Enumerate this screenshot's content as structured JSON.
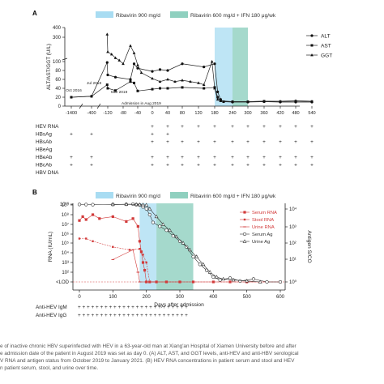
{
  "chart_data": [
    {
      "panel": "A",
      "type": "line",
      "ylabel": "ALT/AST/GGT (U/L)",
      "yticks": [
        "0",
        "20",
        "40",
        "60",
        "80",
        "100",
        "300",
        "400"
      ],
      "xticks": [
        "-1400",
        "-400",
        "-120",
        "-80",
        "-40",
        "0",
        "40",
        "80",
        "120",
        "180",
        "240",
        "300",
        "360",
        "420",
        "480",
        "540"
      ],
      "shaded": [
        {
          "label": "Ribavirin 900 mg/d",
          "color": "#a8dcf2"
        },
        {
          "label": "Ribavirin 600 mg/d + IFN 180 μg/wk",
          "color": "#8fd0bf"
        }
      ],
      "legend": [
        "ALT",
        "AST",
        "GGT"
      ],
      "annotations": [
        "Oct 2016",
        "Jul 2018",
        "Mar 2019",
        "Admission in Aug 2019"
      ],
      "series": [
        {
          "name": "ALT",
          "values": [
            [
              -1400,
              20
            ],
            [
              -400,
              22
            ],
            [
              -130,
              98
            ],
            [
              -120,
              70
            ],
            [
              -100,
              65
            ],
            [
              -60,
              60
            ],
            [
              -50,
              95
            ],
            [
              -40,
              85
            ],
            [
              0,
              78
            ],
            [
              20,
              82
            ],
            [
              40,
              80
            ],
            [
              80,
              95
            ],
            [
              140,
              88
            ],
            [
              180,
              95
            ],
            [
              190,
              32
            ],
            [
              200,
              15
            ],
            [
              210,
              10
            ],
            [
              240,
              9
            ],
            [
              300,
              9
            ],
            [
              360,
              10
            ],
            [
              420,
              9
            ],
            [
              480,
              9
            ],
            [
              540,
              9
            ]
          ]
        },
        {
          "name": "AST",
          "values": [
            [
              -1400,
              20
            ],
            [
              -400,
              22
            ],
            [
              -130,
              48
            ],
            [
              -120,
              40
            ],
            [
              -100,
              35
            ],
            [
              -60,
              55
            ],
            [
              -50,
              52
            ],
            [
              -40,
              34
            ],
            [
              0,
              38
            ],
            [
              20,
              40
            ],
            [
              40,
              40
            ],
            [
              80,
              42
            ],
            [
              140,
              40
            ],
            [
              180,
              42
            ],
            [
              190,
              20
            ],
            [
              200,
              12
            ],
            [
              210,
              10
            ],
            [
              240,
              10
            ],
            [
              300,
              10
            ],
            [
              360,
              11
            ],
            [
              420,
              10
            ],
            [
              480,
              11
            ],
            [
              540,
              10
            ]
          ]
        },
        {
          "name": "GGT",
          "values": [
            [
              -130,
              330
            ],
            [
              -120,
              180
            ],
            [
              -110,
              160
            ],
            [
              -100,
              130
            ],
            [
              -90,
              110
            ],
            [
              -80,
              95
            ],
            [
              -60,
              230
            ],
            [
              -50,
              170
            ],
            [
              -40,
              92
            ],
            [
              -30,
              75
            ],
            [
              0,
              62
            ],
            [
              20,
              55
            ],
            [
              40,
              60
            ],
            [
              60,
              55
            ],
            [
              80,
              58
            ],
            [
              100,
              55
            ],
            [
              120,
              52
            ],
            [
              140,
              48
            ],
            [
              170,
              100
            ],
            [
              180,
              40
            ],
            [
              190,
              15
            ],
            [
              200,
              12
            ],
            [
              240,
              10
            ],
            [
              300,
              10
            ],
            [
              360,
              11
            ],
            [
              420,
              11
            ],
            [
              480,
              12
            ],
            [
              540,
              11
            ]
          ]
        }
      ],
      "table": {
        "rows": [
          {
            "label": "HEV RNA",
            "cells": [
              "",
              "",
              "",
              "",
              "",
              "+",
              "+",
              "+",
              "+",
              "+",
              "+",
              "+",
              "+",
              "+",
              "+",
              "+"
            ]
          },
          {
            "label": "HBsAg",
            "cells": [
              "+",
              "+",
              "",
              "",
              "",
              "+",
              "+",
              "",
              "",
              "",
              "",
              "",
              "",
              "",
              "",
              ""
            ]
          },
          {
            "label": "HBsAb",
            "cells": [
              "",
              "",
              "",
              "",
              "",
              "+",
              "+",
              "+",
              "+",
              "+",
              "+",
              "+",
              "+",
              "+",
              "+",
              "+"
            ]
          },
          {
            "label": "HBeAg",
            "cells": [
              "",
              "",
              "",
              "",
              "",
              "",
              "",
              "",
              "",
              "",
              "",
              "",
              "",
              "",
              "",
              ""
            ]
          },
          {
            "label": "HBeAb",
            "cells": [
              "+",
              "+",
              "",
              "",
              "",
              "+",
              "+",
              "+",
              "+",
              "+",
              "+",
              "+",
              "+",
              "+",
              "+",
              "+"
            ]
          },
          {
            "label": "HBcAb",
            "cells": [
              "+",
              "+",
              "",
              "",
              "",
              "+",
              "+",
              "+",
              "+",
              "+",
              "+",
              "+",
              "+",
              "+",
              "+",
              "+"
            ]
          },
          {
            "label": "HBV DNA",
            "cells": [
              "",
              "",
              "",
              "",
              "",
              "",
              "",
              "",
              "",
              "",
              "",
              "",
              "",
              "",
              "",
              ""
            ]
          }
        ]
      }
    },
    {
      "panel": "B",
      "type": "line",
      "xlabel": "Days after admission",
      "ylabel": "RNA (IU/mL)",
      "ylabel2": "Antigen S/CO",
      "yticks": [
        "<LOD",
        "10²",
        "10³",
        "10⁴",
        "10⁵",
        "10⁶",
        "10⁷",
        "10⁸",
        "10⁹",
        "10¹⁰"
      ],
      "y2ticks": [
        "10⁰",
        "10¹",
        "10²",
        "10³",
        "10⁴"
      ],
      "xticks": [
        "0",
        "100",
        "200",
        "300",
        "400",
        "500",
        "600"
      ],
      "shaded": [
        {
          "label": "Ribavirin 900 mg/d",
          "color": "#a8dcf2"
        },
        {
          "label": "Ribavirin 600 mg/d + IFN 180 μg/wk",
          "color": "#8fd0bf"
        }
      ],
      "legend": [
        "Serum RNA",
        "Stool RNA",
        "Urine RNA",
        "Serum Ag",
        "Urine Ag"
      ],
      "series": [
        {
          "name": "Serum RNA",
          "values": [
            [
              0,
              7.4
            ],
            [
              10,
              7.8
            ],
            [
              20,
              7.5
            ],
            [
              40,
              8.0
            ],
            [
              60,
              7.6
            ],
            [
              100,
              7.8
            ],
            [
              140,
              7.3
            ],
            [
              160,
              7.6
            ],
            [
              175,
              6.8
            ],
            [
              180,
              5.2
            ],
            [
              185,
              4.1
            ],
            [
              190,
              3.0
            ],
            [
              195,
              2.2
            ],
            [
              200,
              1.0
            ],
            [
              210,
              1.0
            ],
            [
              230,
              1.0
            ],
            [
              260,
              1.0
            ],
            [
              300,
              1.0
            ],
            [
              340,
              1.0
            ],
            [
              400,
              1.0
            ],
            [
              450,
              1.0
            ],
            [
              500,
              1.0
            ],
            [
              600,
              1.0
            ]
          ]
        },
        {
          "name": "Stool RNA",
          "values": [
            [
              0,
              5.5
            ],
            [
              20,
              5.5
            ],
            [
              40,
              5.2
            ],
            [
              100,
              4.6
            ],
            [
              150,
              4.3
            ],
            [
              180,
              4.4
            ],
            [
              190,
              3.8
            ],
            [
              200,
              3.0
            ],
            [
              210,
              1.0
            ],
            [
              230,
              1.0
            ],
            [
              260,
              1.0
            ],
            [
              300,
              1.0
            ]
          ]
        },
        {
          "name": "Urine RNA",
          "values": [
            [
              100,
              3.3
            ],
            [
              160,
              4.3
            ],
            [
              175,
              2.0
            ],
            [
              180,
              1.0
            ],
            [
              200,
              1.0
            ],
            [
              220,
              1.0
            ]
          ]
        },
        {
          "name": "Serum Ag",
          "values": [
            [
              0,
              9.6
            ],
            [
              20,
              9.5
            ],
            [
              40,
              9.4
            ],
            [
              100,
              9.6
            ],
            [
              140,
              9.8
            ],
            [
              160,
              10.0
            ],
            [
              170,
              9.4
            ],
            [
              180,
              9.0
            ],
            [
              190,
              8.8
            ],
            [
              200,
              8.6
            ],
            [
              210,
              8.0
            ],
            [
              220,
              7.2
            ],
            [
              240,
              6.8
            ],
            [
              260,
              6.4
            ],
            [
              280,
              5.8
            ],
            [
              300,
              5.2
            ],
            [
              320,
              4.6
            ],
            [
              340,
              3.6
            ],
            [
              360,
              2.8
            ],
            [
              380,
              2.2
            ],
            [
              400,
              1.5
            ],
            [
              420,
              1.2
            ],
            [
              450,
              1.4
            ],
            [
              480,
              1.1
            ],
            [
              520,
              1.3
            ],
            [
              560,
              1.0
            ],
            [
              600,
              1.0
            ]
          ]
        },
        {
          "name": "Urine Ag",
          "values": [
            [
              100,
              9.6
            ],
            [
              140,
              9.8
            ],
            [
              170,
              9.6
            ],
            [
              180,
              9.4
            ],
            [
              190,
              9.2
            ],
            [
              200,
              9.0
            ],
            [
              210,
              8.6
            ],
            [
              230,
              7.8
            ],
            [
              250,
              7.0
            ],
            [
              270,
              6.4
            ],
            [
              290,
              5.7
            ],
            [
              310,
              5.0
            ],
            [
              330,
              4.3
            ],
            [
              350,
              3.6
            ],
            [
              370,
              2.8
            ],
            [
              390,
              2.0
            ],
            [
              410,
              1.5
            ],
            [
              430,
              1.3
            ],
            [
              460,
              1.2
            ],
            [
              500,
              1.1
            ],
            [
              540,
              1.0
            ]
          ]
        }
      ],
      "table": {
        "rows": [
          {
            "label": "Anti-HEV IgM",
            "cells": "+ + + + + + + +   + + + + + + + + + + + + + + + + +"
          },
          {
            "label": "Anti-HEV IgG",
            "cells": "+ + + + + + + +   + + + + + + + + + + + + + + + + +"
          }
        ]
      }
    }
  ],
  "panel_labels": [
    "A",
    "B"
  ],
  "caption": [
    "e of inactive chronic HBV superinfected with HEV in a 63-year-old man at Xiang'an Hospital of Xiamen University before and after",
    "e admission date of the patient in August 2019 was set as day 0. (A) ALT, AST, and GGT levels, anti-HEV and anti-HBV serological",
    "V RNA and antigen status from October 2019 to January 2021. (B) HEV RNA concentrations in patient serum and stool and HEV",
    "n patient serum, stool, and urine over time."
  ]
}
